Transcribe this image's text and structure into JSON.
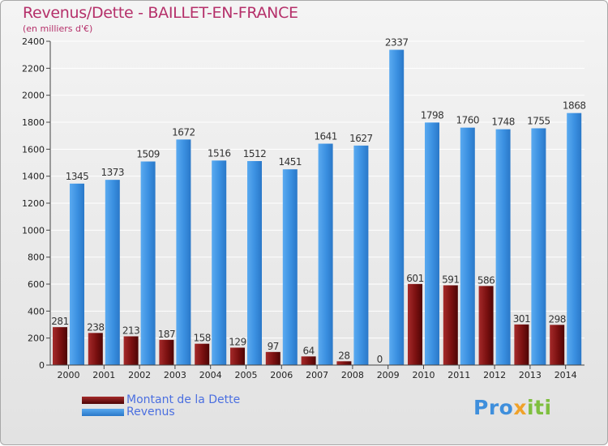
{
  "title": "Revenus/Dette - BAILLET-EN-FRANCE",
  "subtitle": "(en milliers d'€)",
  "chart_data": {
    "type": "bar",
    "categories": [
      "2000",
      "2001",
      "2002",
      "2003",
      "2004",
      "2005",
      "2006",
      "2007",
      "2008",
      "2009",
      "2010",
      "2011",
      "2012",
      "2013",
      "2014"
    ],
    "series": [
      {
        "name": "Montant de la Dette",
        "color": "#7a1010",
        "values": [
          281,
          238,
          213,
          187,
          158,
          129,
          97,
          64,
          28,
          0,
          601,
          591,
          586,
          301,
          298
        ]
      },
      {
        "name": "Revenus",
        "color": "#3a8fe0",
        "values": [
          1345,
          1373,
          1509,
          1672,
          1516,
          1512,
          1451,
          1641,
          1627,
          2337,
          1798,
          1760,
          1748,
          1755,
          1868
        ]
      }
    ],
    "ylim": [
      0,
      2400
    ],
    "yticks": [
      0,
      200,
      400,
      600,
      800,
      1000,
      1200,
      1400,
      1600,
      1800,
      2000,
      2200,
      2400
    ],
    "grid": true,
    "legend_position": "bottom-left"
  },
  "legend": [
    {
      "label": "Montant de la Dette",
      "color": "#7a1010"
    },
    {
      "label": "Revenus",
      "color": "#3a8fe0"
    }
  ],
  "logo": {
    "part1": "Pro",
    "part2": "x",
    "part3": "iti"
  }
}
